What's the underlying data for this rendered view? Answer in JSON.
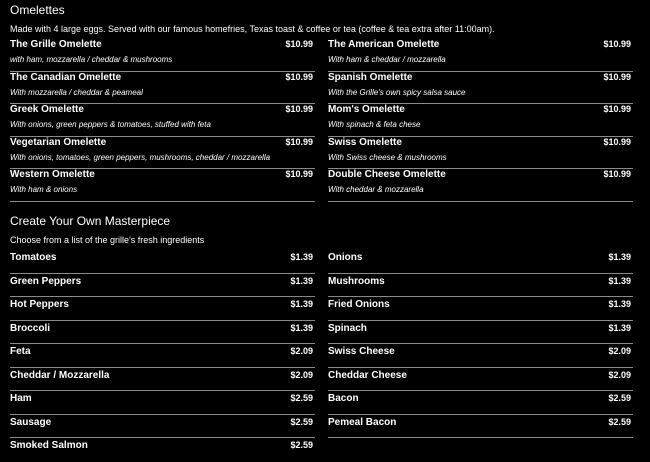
{
  "omelettes": {
    "title": "Omelettes",
    "subtitle": "Made with 4 large eggs. Served with our famous homefries, Texas toast & coffee or tea (coffee & tea extra after 11:00am).",
    "left": [
      {
        "name": "The Grille Omelette",
        "price": "$10.99",
        "desc": "with ham, mozzarella / cheddar & mushrooms"
      },
      {
        "name": "The Canadian Omelette",
        "price": "$10.99",
        "desc": "With mozzarella / cheddar & peameal"
      },
      {
        "name": "Greek Omelette",
        "price": "$10.99",
        "desc": "With onions, green peppers & tomatoes, stuffed with feta"
      },
      {
        "name": "Vegetarian Omelette",
        "price": "$10.99",
        "desc": "With onions, tomatoes, green peppers, mushrooms, cheddar / mozzarella"
      },
      {
        "name": "Western Omelette",
        "price": "$10.99",
        "desc": "With ham & onions"
      }
    ],
    "right": [
      {
        "name": "The American Omelette",
        "price": "$10.99",
        "desc": "With ham & cheddar / mozzarella"
      },
      {
        "name": "Spanish Omelette",
        "price": "$10.99",
        "desc": "With the Grille's own spicy salsa sauce"
      },
      {
        "name": "Mom's Omelette",
        "price": "$10.99",
        "desc": "With spinach & feta chese"
      },
      {
        "name": "Swiss Omelette",
        "price": "$10.99",
        "desc": "With Swiss cheese & mushrooms"
      },
      {
        "name": "Double Cheese Omelette",
        "price": "$10.99",
        "desc": "With cheddar & mozzarella"
      }
    ]
  },
  "masterpiece": {
    "title": "Create Your Own Masterpiece",
    "subtitle": "Choose from a list of the grille's fresh ingredients",
    "left": [
      {
        "name": "Tomatoes",
        "price": "$1.39"
      },
      {
        "name": "Green Peppers",
        "price": "$1.39"
      },
      {
        "name": "Hot Peppers",
        "price": "$1.39"
      },
      {
        "name": "Broccoli",
        "price": "$1.39"
      },
      {
        "name": "Feta",
        "price": "$2.09"
      },
      {
        "name": "Cheddar / Mozzarella",
        "price": "$2.09"
      },
      {
        "name": "Ham",
        "price": "$2.59"
      },
      {
        "name": "Sausage",
        "price": "$2.59"
      },
      {
        "name": "Smoked Salmon",
        "price": "$2.59"
      }
    ],
    "right": [
      {
        "name": "Onions",
        "price": "$1.39"
      },
      {
        "name": "Mushrooms",
        "price": "$1.39"
      },
      {
        "name": "Fried Onions",
        "price": "$1.39"
      },
      {
        "name": "Spinach",
        "price": "$1.39"
      },
      {
        "name": "Swiss Cheese",
        "price": "$2.09"
      },
      {
        "name": "Cheddar Cheese",
        "price": "$2.09"
      },
      {
        "name": "Bacon",
        "price": "$2.59"
      },
      {
        "name": "Pemeal Bacon",
        "price": "$2.59"
      }
    ]
  }
}
